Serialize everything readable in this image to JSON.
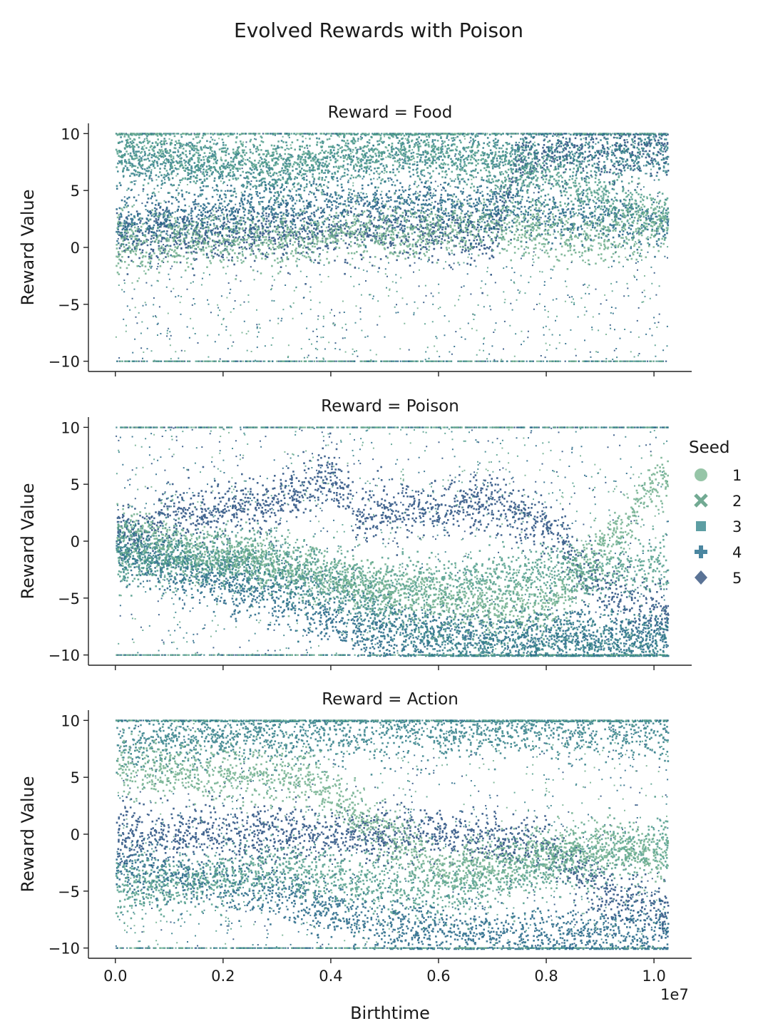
{
  "chart_data": {
    "type": "scatter",
    "title": "Evolved Rewards with Poison",
    "xlabel": "Birthtime",
    "x_offset_label": "1e7",
    "ylabel": "Reward Value",
    "xlim": [
      -0.05,
      1.07
    ],
    "ylim": [
      -10.9,
      10.9
    ],
    "x_ticks": [
      "0.0",
      "0.2",
      "0.4",
      "0.6",
      "0.8",
      "1.0"
    ],
    "x_tick_values": [
      0.0,
      0.2,
      0.4,
      0.6,
      0.8,
      1.0
    ],
    "y_ticks": [
      "10",
      "5",
      "0",
      "−5",
      "−10"
    ],
    "y_tick_values": [
      10,
      5,
      0,
      -5,
      -10
    ],
    "legend": {
      "title": "Seed",
      "placement": "center-right",
      "entries": [
        {
          "label": "1",
          "marker": "circle",
          "color": "#96c5a7"
        },
        {
          "label": "2",
          "marker": "x",
          "color": "#72aa93"
        },
        {
          "label": "3",
          "marker": "square",
          "color": "#5d9ea3"
        },
        {
          "label": "4",
          "marker": "plus",
          "color": "#4a86a0"
        },
        {
          "label": "5",
          "marker": "diamond",
          "color": "#5a7396"
        }
      ]
    },
    "series_colors": [
      "#6fae8c",
      "#4f9c8a",
      "#2e7d86",
      "#1f6384",
      "#234b7c"
    ],
    "panels": [
      {
        "title": "Reward = Food",
        "bands": [
          {
            "seed": 5,
            "points": [
              [
                0.0,
                1.0
              ],
              [
                0.3,
                1.5
              ],
              [
                0.6,
                1.5
              ],
              [
                0.7,
                1.0
              ],
              [
                0.75,
                8.0
              ],
              [
                1.02,
                9.0
              ]
            ]
          },
          {
            "seed": 4,
            "points": [
              [
                0.0,
                2.0
              ],
              [
                0.25,
                3.5
              ],
              [
                0.55,
                4.0
              ],
              [
                0.8,
                3.0
              ],
              [
                1.02,
                2.0
              ]
            ]
          },
          {
            "seed": 3,
            "points": [
              [
                0.0,
                8.0
              ],
              [
                0.3,
                6.5
              ],
              [
                0.5,
                8.5
              ],
              [
                0.7,
                8.0
              ],
              [
                1.02,
                8.5
              ]
            ]
          },
          {
            "seed": 2,
            "points": [
              [
                0.0,
                9.0
              ],
              [
                0.3,
                7.5
              ],
              [
                0.55,
                9.0
              ],
              [
                0.8,
                6.0
              ],
              [
                1.02,
                3.0
              ]
            ]
          },
          {
            "seed": 1,
            "points": [
              [
                0.0,
                0.5
              ],
              [
                0.35,
                1.0
              ],
              [
                0.7,
                2.0
              ],
              [
                0.9,
                1.0
              ],
              [
                1.02,
                2.5
              ]
            ]
          }
        ]
      },
      {
        "title": "Reward = Poison",
        "bands": [
          {
            "seed": 5,
            "points": [
              [
                0.0,
                0.0
              ],
              [
                0.1,
                2.5
              ],
              [
                0.3,
                3.5
              ],
              [
                0.4,
                5.5
              ],
              [
                0.45,
                2.5
              ],
              [
                0.7,
                3.5
              ],
              [
                0.8,
                1.5
              ],
              [
                0.9,
                -4.0
              ],
              [
                1.02,
                -6.5
              ]
            ]
          },
          {
            "seed": 4,
            "points": [
              [
                0.0,
                -1.0
              ],
              [
                0.15,
                -3.0
              ],
              [
                0.3,
                -5.0
              ],
              [
                0.45,
                -8.0
              ],
              [
                0.7,
                -8.0
              ],
              [
                1.02,
                -8.5
              ]
            ]
          },
          {
            "seed": 3,
            "points": [
              [
                0.0,
                0.0
              ],
              [
                0.2,
                -2.0
              ],
              [
                0.4,
                -4.0
              ],
              [
                0.6,
                -9.0
              ],
              [
                1.02,
                -9.0
              ]
            ]
          },
          {
            "seed": 2,
            "points": [
              [
                0.0,
                -2.0
              ],
              [
                0.25,
                -1.0
              ],
              [
                0.5,
                -4.0
              ],
              [
                0.75,
                -3.0
              ],
              [
                1.02,
                -2.0
              ]
            ]
          },
          {
            "seed": 1,
            "points": [
              [
                0.0,
                1.0
              ],
              [
                0.3,
                -2.0
              ],
              [
                0.5,
                -4.5
              ],
              [
                0.8,
                -6.0
              ],
              [
                1.02,
                6.0
              ]
            ]
          }
        ]
      },
      {
        "title": "Reward = Action",
        "bands": [
          {
            "seed": 5,
            "points": [
              [
                0.0,
                0.0
              ],
              [
                0.3,
                0.0
              ],
              [
                0.6,
                0.0
              ],
              [
                0.8,
                -1.0
              ],
              [
                0.9,
                -5.0
              ],
              [
                1.02,
                -7.0
              ]
            ]
          },
          {
            "seed": 4,
            "points": [
              [
                0.0,
                -3.0
              ],
              [
                0.3,
                -5.0
              ],
              [
                0.5,
                -8.0
              ],
              [
                0.75,
                -9.0
              ],
              [
                1.02,
                -8.5
              ]
            ]
          },
          {
            "seed": 3,
            "points": [
              [
                0.0,
                8.0
              ],
              [
                0.3,
                9.0
              ],
              [
                0.55,
                9.0
              ],
              [
                0.8,
                9.5
              ],
              [
                1.02,
                9.0
              ]
            ]
          },
          {
            "seed": 2,
            "points": [
              [
                0.0,
                -5.0
              ],
              [
                0.3,
                -3.0
              ],
              [
                0.6,
                -5.0
              ],
              [
                0.85,
                -2.0
              ],
              [
                1.02,
                -1.0
              ]
            ]
          },
          {
            "seed": 1,
            "points": [
              [
                0.0,
                6.0
              ],
              [
                0.35,
                5.0
              ],
              [
                0.6,
                -3.0
              ],
              [
                0.9,
                -1.0
              ],
              [
                1.02,
                -2.0
              ]
            ]
          }
        ]
      }
    ]
  }
}
